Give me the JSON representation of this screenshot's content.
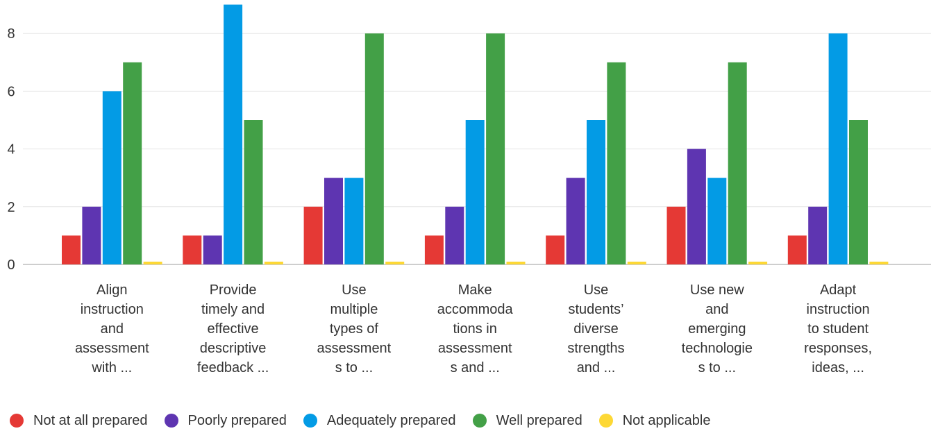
{
  "chart_data": {
    "type": "bar",
    "categories": [
      [
        "Align",
        "instruction",
        "and",
        "assessment",
        "with ..."
      ],
      [
        "Provide",
        "timely and",
        "effective",
        "descriptive",
        "feedback ..."
      ],
      [
        "Use",
        "multiple",
        "types of",
        "assessment",
        "s to ..."
      ],
      [
        "Make",
        "accommoda",
        "tions in",
        "assessment",
        "s and ..."
      ],
      [
        "Use",
        "students’",
        "diverse",
        "strengths",
        "and ..."
      ],
      [
        "Use new",
        "and",
        "emerging",
        "technologie",
        "s to ..."
      ],
      [
        "Adapt",
        "instruction",
        "to student",
        "responses,",
        "ideas, ..."
      ]
    ],
    "series": [
      {
        "name": "Not at all prepared",
        "color": "#e53935",
        "values": [
          1,
          1,
          2,
          1,
          1,
          2,
          1
        ]
      },
      {
        "name": "Poorly prepared",
        "color": "#5e35b1",
        "values": [
          2,
          1,
          3,
          2,
          3,
          4,
          2
        ]
      },
      {
        "name": "Adequately prepared",
        "color": "#039be5",
        "values": [
          6,
          9,
          3,
          5,
          5,
          3,
          8
        ]
      },
      {
        "name": "Well prepared",
        "color": "#43a047",
        "values": [
          7,
          5,
          8,
          8,
          7,
          7,
          5
        ]
      },
      {
        "name": "Not applicable",
        "color": "#fdd835",
        "values": [
          0,
          0,
          0,
          0,
          0,
          0,
          0
        ]
      }
    ],
    "y_ticks": [
      0,
      2,
      4,
      6,
      8
    ],
    "ylim": [
      0,
      9
    ],
    "grid": true,
    "legend_position": "bottom-left",
    "title": "",
    "xlabel": "",
    "ylabel": ""
  }
}
